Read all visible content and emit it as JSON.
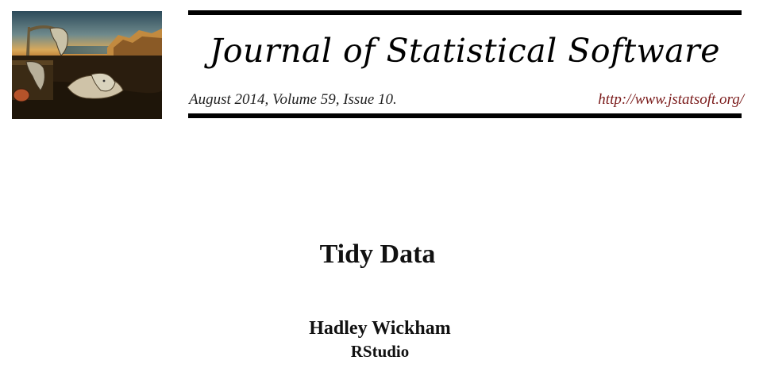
{
  "masthead": {
    "journal_name": "Journal of Statistical Software",
    "issue_info": "August 2014, Volume 59, Issue 10.",
    "url": "http://www.jstatsoft.org/",
    "url_color": "#7a1a1a",
    "cover_art_icon": "melting-clocks-painting"
  },
  "paper": {
    "title": "Tidy Data",
    "author": "Hadley Wickham",
    "affiliation": "RStudio"
  }
}
